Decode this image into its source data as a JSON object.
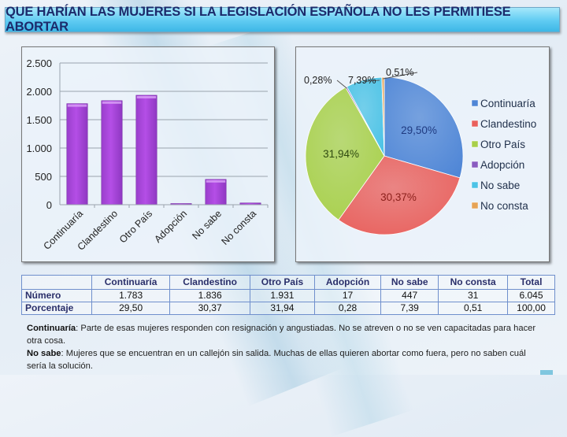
{
  "title": "QUE HARÍAN LAS MUJERES SI LA LEGISLACIÓN ESPAÑOLA NO LES PERMITIESE ABORTAR",
  "colors": {
    "title_text": "#1c2a6b",
    "bar_fill": "#b44ee6",
    "pie": [
      "#4f86d6",
      "#e9605c",
      "#a8d04a",
      "#8a5cc0",
      "#4cc3e6",
      "#e6a355"
    ]
  },
  "chart_data": [
    {
      "type": "bar",
      "title": "",
      "xlabel": "",
      "ylabel": "",
      "categories": [
        "Continuaría",
        "Clandestino",
        "Otro País",
        "Adopción",
        "No sabe",
        "No consta"
      ],
      "values": [
        1783,
        1836,
        1931,
        17,
        447,
        31
      ],
      "ylim": [
        0,
        2500
      ],
      "yticks": [
        0,
        500,
        1000,
        1500,
        2000,
        2500
      ],
      "ytick_labels": [
        "0",
        "500",
        "1.000",
        "1.500",
        "2.000",
        "2.500"
      ],
      "grid": true,
      "legend": "none"
    },
    {
      "type": "pie",
      "title": "",
      "categories": [
        "Continuaría",
        "Clandestino",
        "Otro País",
        "Adopción",
        "No sabe",
        "No consta"
      ],
      "values": [
        29.5,
        30.37,
        31.94,
        0.28,
        7.39,
        0.51
      ],
      "labels": [
        "29,50%",
        "30,37%",
        "31,94%",
        "0,28%",
        "7,39%",
        "0,51%"
      ],
      "legend": "right"
    }
  ],
  "table": {
    "headers": [
      "",
      "Continuaría",
      "Clandestino",
      "Otro País",
      "Adopción",
      "No sabe",
      "No consta",
      "Total"
    ],
    "rows": [
      {
        "label": "Número",
        "cells": [
          "1.783",
          "1.836",
          "1.931",
          "17",
          "447",
          "31",
          "6.045"
        ]
      },
      {
        "label": "Porcentaje",
        "cells": [
          "29,50",
          "30,37",
          "31,94",
          "0,28",
          "7,39",
          "0,51",
          "100,00"
        ]
      }
    ]
  },
  "notes": [
    {
      "term": "Continuaría",
      "text": ": Parte de esas mujeres responden con resignación y angustiadas. No se atreven o no se ven capacitadas para hacer otra cosa."
    },
    {
      "term": "No sabe",
      "text": ": Mujeres que se encuentran en un callejón sin salida. Muchas de ellas quieren abortar como fuera, pero no saben cuál sería la solución."
    }
  ]
}
